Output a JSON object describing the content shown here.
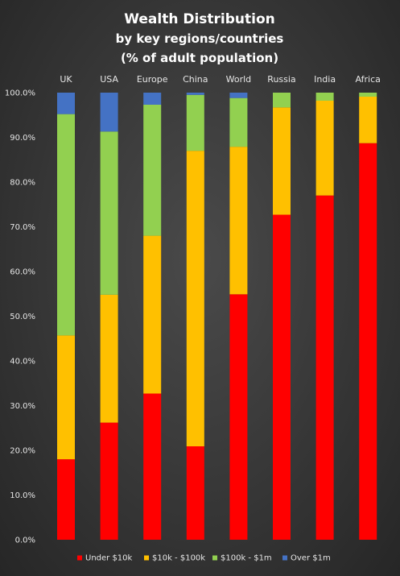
{
  "chart_data": {
    "type": "bar",
    "stacked": true,
    "title": [
      "Wealth Distribution",
      "by key regions/countries",
      "(% of adult population)"
    ],
    "xlabel": "",
    "ylabel": "",
    "ylim": [
      0,
      100
    ],
    "yticks": [
      "0.0%",
      "10.0%",
      "20.0%",
      "30.0%",
      "40.0%",
      "50.0%",
      "60.0%",
      "70.0%",
      "80.0%",
      "90.0%",
      "100.0%"
    ],
    "x_axis_position": "top",
    "grid": false,
    "legend_position": "bottom",
    "categories": [
      "UK",
      "USA",
      "Europe",
      "China",
      "World",
      "Russia",
      "India",
      "Africa"
    ],
    "series": [
      {
        "name": "Under $10k",
        "color": "#ff0000",
        "values": [
          18.0,
          26.2,
          32.7,
          20.9,
          54.9,
          72.7,
          77.0,
          88.7
        ]
      },
      {
        "name": "$10k - $100k",
        "color": "#ffc000",
        "values": [
          27.7,
          28.6,
          35.3,
          66.1,
          33.0,
          24.0,
          21.2,
          10.4
        ]
      },
      {
        "name": "$100k - $1m",
        "color": "#92d050",
        "values": [
          49.5,
          36.5,
          29.3,
          12.5,
          10.9,
          3.3,
          1.8,
          0.9
        ]
      },
      {
        "name": "Over $1m",
        "color": "#4472c4",
        "values": [
          4.8,
          8.7,
          2.7,
          0.5,
          1.2,
          0.0,
          0.0,
          0.0
        ]
      }
    ]
  }
}
